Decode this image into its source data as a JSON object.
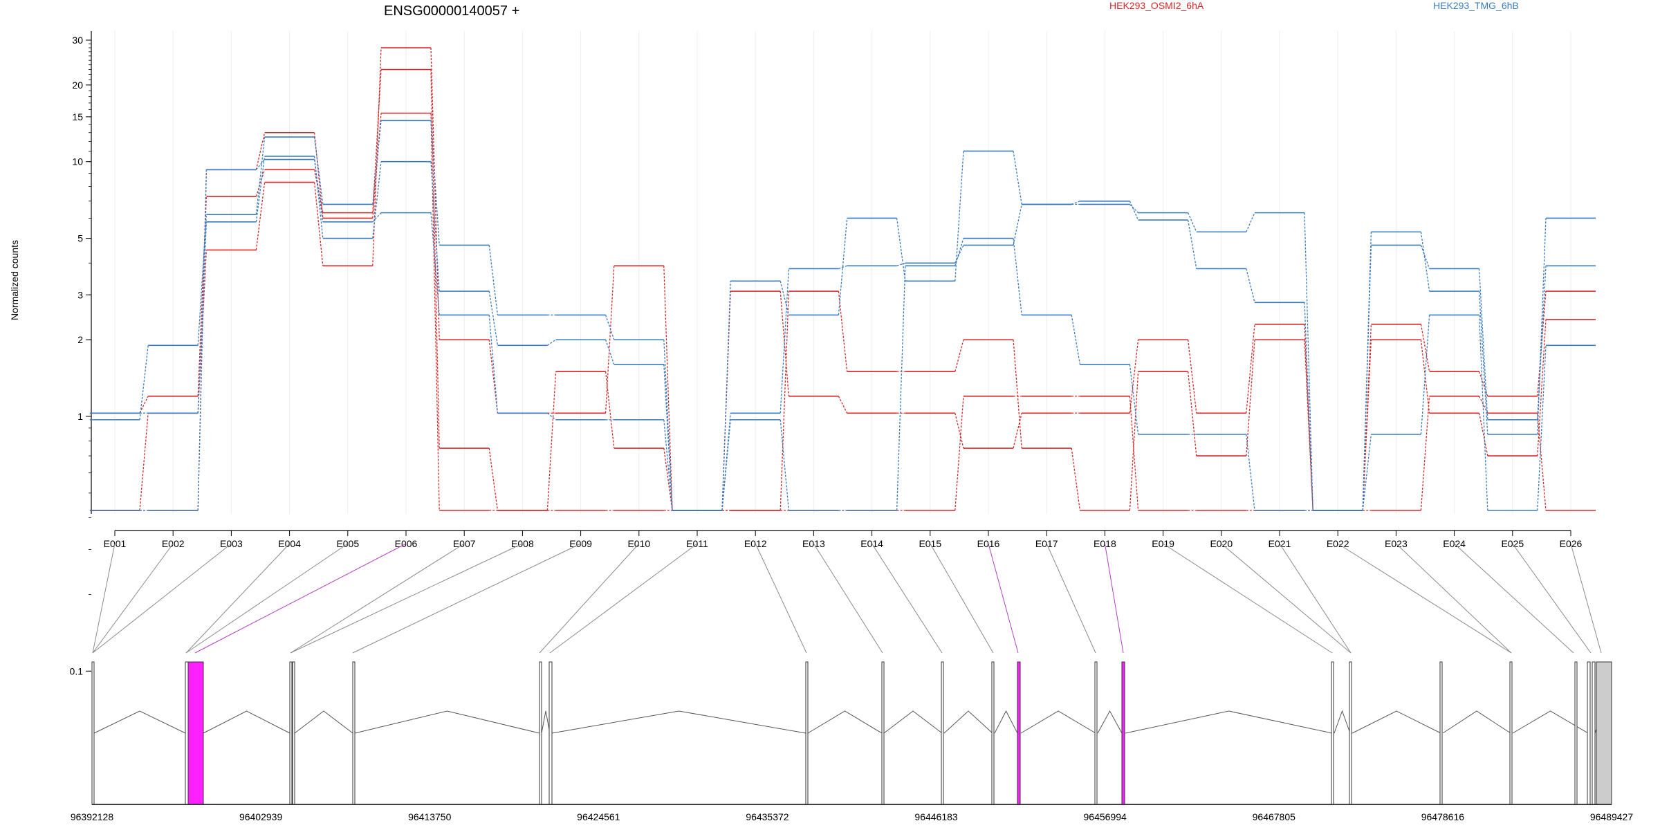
{
  "chart_data": {
    "type": "line",
    "title": "ENSG00000140057 +",
    "ylabel": "Normalized counts",
    "yscale": "log",
    "yticks": [
      {
        "value": 0.1,
        "label": "0.1"
      },
      {
        "value": 1,
        "label": "1"
      },
      {
        "value": 2,
        "label": "2"
      },
      {
        "value": 3,
        "label": "3"
      },
      {
        "value": 5,
        "label": "5"
      },
      {
        "value": 10,
        "label": "10"
      },
      {
        "value": 15,
        "label": "15"
      },
      {
        "value": 20,
        "label": "20"
      },
      {
        "value": 30,
        "label": "30"
      }
    ],
    "legend": [
      {
        "label": "HEK293_OSMI2_6hA",
        "color": "#d62728"
      },
      {
        "label": "HEK293_TMG_6hB",
        "color": "#3a7bbf"
      }
    ],
    "colors": {
      "osmi": "#d62728",
      "tmg": "#3a7bbf",
      "highlight": "#ff20ff",
      "connector": "#8a8a8a",
      "connector_highlight": "#b040c0",
      "last_exon_fill": "#cccccc"
    },
    "categories": [
      "E001",
      "E002",
      "E003",
      "E004",
      "E005",
      "E006",
      "E007",
      "E008",
      "E009",
      "E010",
      "E011",
      "E012",
      "E013",
      "E014",
      "E015",
      "E016",
      "E017",
      "E018",
      "E019",
      "E020",
      "E021",
      "E022",
      "E023",
      "E024",
      "E025",
      "E026"
    ],
    "series": [
      {
        "group": "osmi",
        "values": [
          0.06,
          1.03,
          4.5,
          8.3,
          3.9,
          28,
          2.0,
          1.03,
          1.03,
          3.9,
          0.06,
          3.1,
          1.2,
          1.03,
          1.03,
          0.75,
          1.03,
          1.03,
          2.0,
          1.03,
          2.3,
          0.06,
          2.3,
          1.5,
          1.2,
          3.1
        ]
      },
      {
        "group": "osmi",
        "values": [
          1.03,
          1.2,
          7.3,
          9.3,
          6.3,
          23,
          0.75,
          0.06,
          1.5,
          0.75,
          0.06,
          0.06,
          3.1,
          1.5,
          1.5,
          2.0,
          0.75,
          0.06,
          1.5,
          0.7,
          2.0,
          0.06,
          2.0,
          1.03,
          0.7,
          2.4
        ]
      },
      {
        "group": "osmi",
        "values": [
          0.06,
          0.06,
          9.3,
          13,
          6.0,
          15.5,
          0.06,
          0.06,
          0.06,
          0.06,
          0.06,
          0.06,
          0.06,
          0.06,
          0.06,
          1.2,
          1.2,
          1.2,
          0.06,
          0.06,
          0.06,
          0.06,
          0.06,
          1.2,
          1.03,
          0.06
        ]
      },
      {
        "group": "tmg",
        "values": [
          0.97,
          1.9,
          6.2,
          12.5,
          6.8,
          14.5,
          4.7,
          2.5,
          2.5,
          2.0,
          0.06,
          3.4,
          2.5,
          6.0,
          3.4,
          11,
          6.8,
          7.0,
          5.9,
          3.8,
          2.8,
          0.06,
          5.3,
          3.1,
          0.85,
          6.0
        ]
      },
      {
        "group": "tmg",
        "values": [
          1.03,
          1.03,
          5.8,
          10.5,
          5.0,
          10,
          3.1,
          1.9,
          2.0,
          1.6,
          0.06,
          1.03,
          3.8,
          3.9,
          4.0,
          4.7,
          6.8,
          6.8,
          6.3,
          5.3,
          6.3,
          0.06,
          4.7,
          3.8,
          0.97,
          3.9
        ]
      },
      {
        "group": "tmg",
        "values": [
          0.06,
          0.06,
          9.3,
          10.2,
          5.8,
          6.3,
          2.5,
          1.03,
          0.97,
          0.97,
          0.06,
          0.97,
          0.06,
          0.06,
          3.9,
          5.0,
          2.5,
          1.6,
          0.85,
          0.85,
          0.06,
          0.06,
          0.85,
          2.5,
          0.06,
          1.9
        ]
      }
    ],
    "genome_axis": {
      "ticks": [
        "96392128",
        "96402939",
        "96413750",
        "96424561",
        "96435372",
        "96446183",
        "96456994",
        "96467805",
        "96478616",
        "96489427"
      ]
    },
    "highlighted_exons": [
      "E006",
      "E016",
      "E018"
    ]
  }
}
